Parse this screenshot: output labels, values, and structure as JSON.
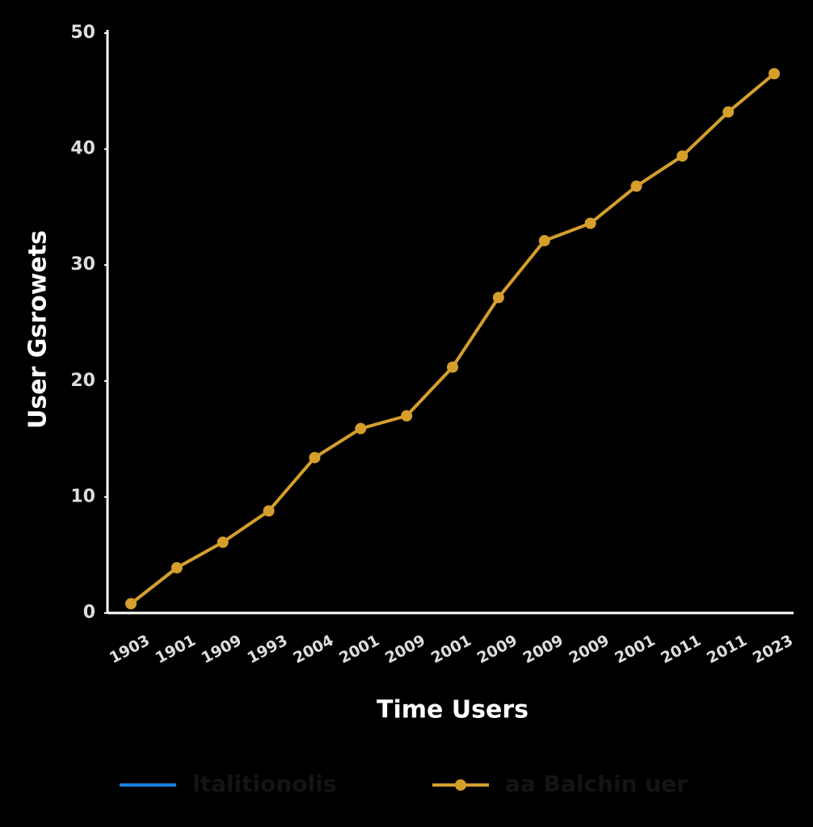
{
  "chart_data": {
    "type": "line",
    "x_label": "Time Users",
    "y_label": "User Gsrowets",
    "categories": [
      "1903",
      "1901",
      "1909",
      "1993",
      "2004",
      "2001",
      "2009",
      "2001",
      "2009",
      "2009",
      "2009",
      "2001",
      "2011",
      "2011",
      "2023"
    ],
    "series": [
      {
        "name": "aa Balchin uer",
        "color": "#d49f2b",
        "marker": "circle",
        "values": [
          0.8,
          3.9,
          6.1,
          8.8,
          13.4,
          15.9,
          17.0,
          21.2,
          27.2,
          32.1,
          33.6,
          36.8,
          39.4,
          43.2,
          46.5
        ]
      }
    ],
    "legend": [
      {
        "label": "ltalitionolis",
        "color": "#1a7fe0",
        "marker": "none"
      },
      {
        "label": "aa Balchin uer",
        "color": "#d49f2b",
        "marker": "circle"
      }
    ],
    "ylim": [
      0,
      50
    ],
    "yticks": [
      0,
      10,
      20,
      30,
      40,
      50
    ],
    "grid": false
  }
}
